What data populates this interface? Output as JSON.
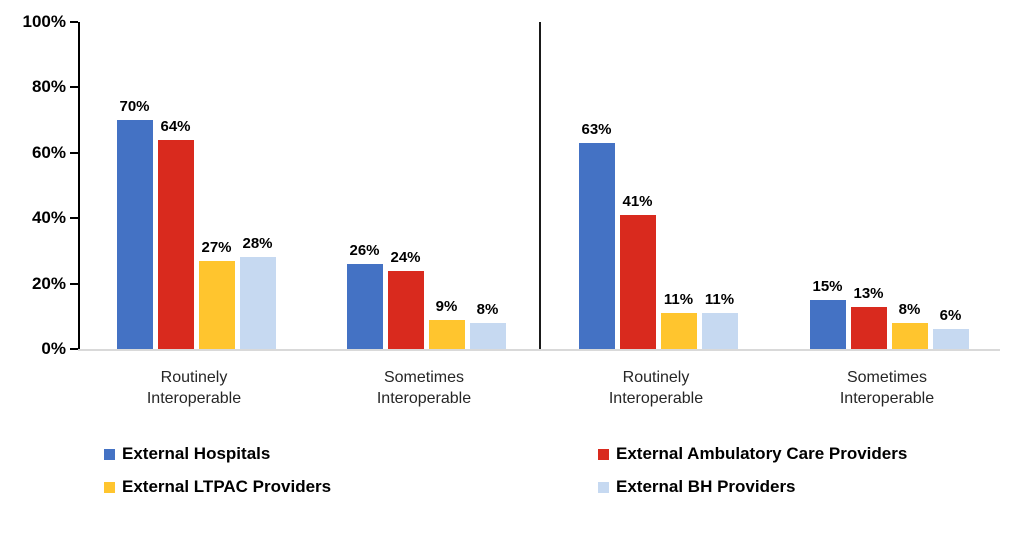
{
  "chart_data": {
    "type": "bar",
    "title": "",
    "xlabel": "",
    "ylabel": "",
    "ylim": [
      0,
      100
    ],
    "grid": false,
    "legend_position": "bottom",
    "y_tick_labels": [
      "100%",
      "80%",
      "60%",
      "40%",
      "20%",
      "0%"
    ],
    "series": [
      {
        "name": "External Hospitals",
        "color": "#4472C4"
      },
      {
        "name": "External Ambulatory Care Providers",
        "color": "#D92A1E"
      },
      {
        "name": "External LTPAC Providers",
        "color": "#FFC52E"
      },
      {
        "name": "External BH Providers",
        "color": "#C6D9F1"
      }
    ],
    "groups": [
      {
        "category": "Routinely\nInteroperable",
        "panel": "left",
        "values": [
          70,
          64,
          27,
          28
        ]
      },
      {
        "category": "Sometimes\nInteroperable",
        "panel": "left",
        "values": [
          26,
          24,
          9,
          8
        ]
      },
      {
        "category": "Routinely\nInteroperable",
        "panel": "right",
        "values": [
          63,
          41,
          11,
          11
        ]
      },
      {
        "category": "Sometimes\nInteroperable",
        "panel": "right",
        "values": [
          15,
          13,
          8,
          6
        ]
      }
    ],
    "data_label_suffix": "%",
    "axis_color": "#000000",
    "baseline_color": "#D9D9D9",
    "divider_color": "#1A1A1A"
  },
  "legend": {
    "items": [
      {
        "series_index": 0,
        "label": "External Hospitals"
      },
      {
        "series_index": 2,
        "label": "External LTPAC Providers"
      },
      {
        "series_index": 1,
        "label": "External Ambulatory Care Providers"
      },
      {
        "series_index": 3,
        "label": "External BH Providers"
      }
    ]
  }
}
